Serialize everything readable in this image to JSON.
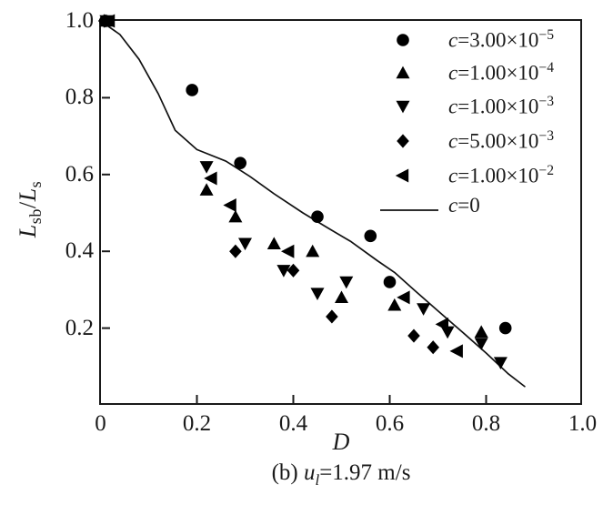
{
  "figure": {
    "caption": {
      "prefix": "(b) ",
      "variable": "u",
      "subscript": "l",
      "suffix": "=1.97 m/s"
    },
    "colors": {
      "foreground": "#1a1a1a",
      "marker": "#000000",
      "line": "#111111",
      "background": "#ffffff"
    }
  },
  "chart_data": {
    "type": "scatter",
    "title": "",
    "xlabel": "D",
    "ylabel_text": "Lsb/Ls",
    "ylabel_parts": {
      "l1": "L",
      "s1": "sb",
      "sep": "/",
      "l2": "L",
      "s2": "s"
    },
    "xlim": [
      0,
      1.0
    ],
    "ylim": [
      0,
      1.0
    ],
    "grid": false,
    "legend_position": "top-right",
    "x_ticks": [
      {
        "v": 0.0,
        "label": "0"
      },
      {
        "v": 0.2,
        "label": "0.2"
      },
      {
        "v": 0.4,
        "label": "0.4"
      },
      {
        "v": 0.6,
        "label": "0.6"
      },
      {
        "v": 0.8,
        "label": "0.8"
      },
      {
        "v": 1.0,
        "label": "1.0"
      }
    ],
    "y_ticks": [
      {
        "v": 0.2,
        "label": "0.2"
      },
      {
        "v": 0.4,
        "label": "0.4"
      },
      {
        "v": 0.6,
        "label": "0.6"
      },
      {
        "v": 0.8,
        "label": "0.8"
      },
      {
        "v": 1.0,
        "label": "1.0"
      }
    ],
    "series": [
      {
        "name": "c=3.00e-5",
        "marker": "circle",
        "label": {
          "var": "c",
          "rest": "=3.00×10",
          "exp": "−5"
        },
        "label_text": "c=3.00×10⁻⁵",
        "points": [
          [
            0.01,
            1.0
          ],
          [
            0.19,
            0.82
          ],
          [
            0.29,
            0.63
          ],
          [
            0.45,
            0.49
          ],
          [
            0.56,
            0.44
          ],
          [
            0.6,
            0.32
          ],
          [
            0.84,
            0.2
          ]
        ]
      },
      {
        "name": "c=1.00e-4",
        "marker": "triangle-up",
        "label": {
          "var": "c",
          "rest": "=1.00×10",
          "exp": "−4"
        },
        "label_text": "c=1.00×10⁻⁴",
        "points": [
          [
            0.012,
            1.0
          ],
          [
            0.22,
            0.56
          ],
          [
            0.28,
            0.49
          ],
          [
            0.36,
            0.42
          ],
          [
            0.44,
            0.4
          ],
          [
            0.5,
            0.28
          ],
          [
            0.61,
            0.26
          ],
          [
            0.79,
            0.19
          ]
        ]
      },
      {
        "name": "c=1.00e-3",
        "marker": "triangle-down",
        "label": {
          "var": "c",
          "rest": "=1.00×10",
          "exp": "−3"
        },
        "label_text": "c=1.00×10⁻³",
        "points": [
          [
            0.012,
            1.0
          ],
          [
            0.22,
            0.62
          ],
          [
            0.3,
            0.42
          ],
          [
            0.38,
            0.35
          ],
          [
            0.45,
            0.29
          ],
          [
            0.51,
            0.32
          ],
          [
            0.67,
            0.25
          ],
          [
            0.72,
            0.19
          ],
          [
            0.79,
            0.16
          ],
          [
            0.83,
            0.11
          ]
        ]
      },
      {
        "name": "c=5.00e-3",
        "marker": "diamond",
        "label": {
          "var": "c",
          "rest": "=5.00×10",
          "exp": "−3"
        },
        "label_text": "c=5.00×10⁻³",
        "points": [
          [
            0.008,
            1.0
          ],
          [
            0.28,
            0.4
          ],
          [
            0.4,
            0.35
          ],
          [
            0.48,
            0.23
          ],
          [
            0.65,
            0.18
          ],
          [
            0.69,
            0.15
          ]
        ]
      },
      {
        "name": "c=1.00e-2",
        "marker": "triangle-left",
        "label": {
          "var": "c",
          "rest": "=1.00×10",
          "exp": "−2"
        },
        "label_text": "c=1.00×10⁻²",
        "points": [
          [
            0.018,
            1.0
          ],
          [
            0.23,
            0.59
          ],
          [
            0.27,
            0.52
          ],
          [
            0.39,
            0.4
          ],
          [
            0.63,
            0.28
          ],
          [
            0.71,
            0.21
          ],
          [
            0.74,
            0.14
          ]
        ]
      },
      {
        "name": "c=0",
        "marker": "line",
        "label": {
          "var": "c",
          "rest": "=0",
          "exp": ""
        },
        "label_text": "c=0",
        "points": [
          [
            0.0,
            1.0
          ],
          [
            0.04,
            0.965
          ],
          [
            0.08,
            0.9
          ],
          [
            0.12,
            0.81
          ],
          [
            0.155,
            0.715
          ],
          [
            0.2,
            0.665
          ],
          [
            0.26,
            0.635
          ],
          [
            0.31,
            0.595
          ],
          [
            0.36,
            0.55
          ],
          [
            0.42,
            0.5
          ],
          [
            0.47,
            0.462
          ],
          [
            0.52,
            0.425
          ],
          [
            0.575,
            0.375
          ],
          [
            0.61,
            0.345
          ],
          [
            0.65,
            0.3
          ],
          [
            0.7,
            0.245
          ],
          [
            0.755,
            0.185
          ],
          [
            0.8,
            0.135
          ],
          [
            0.845,
            0.082
          ],
          [
            0.88,
            0.048
          ]
        ]
      }
    ]
  }
}
